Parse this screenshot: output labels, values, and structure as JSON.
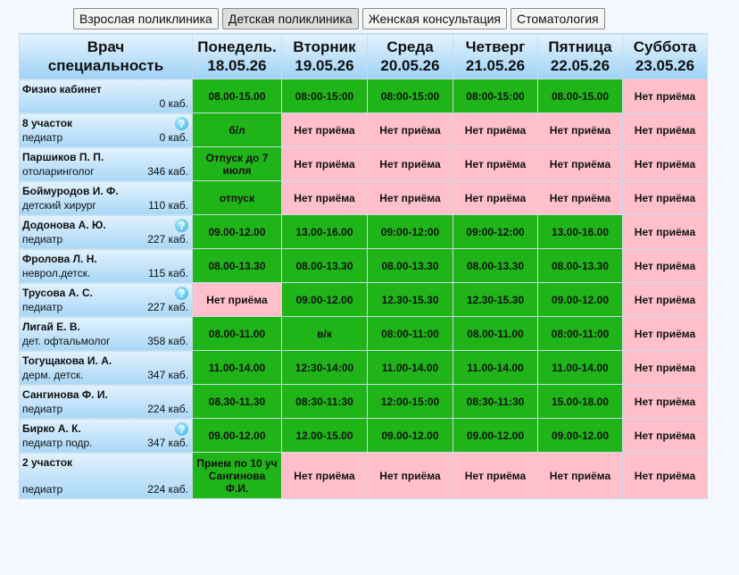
{
  "tabs": [
    {
      "label": "Взрослая поликлиника",
      "active": false
    },
    {
      "label": "Детская поликлиника",
      "active": true
    },
    {
      "label": "Женская консультация",
      "active": false
    },
    {
      "label": "Стоматология",
      "active": false
    }
  ],
  "table": {
    "doctor_header": [
      "Врач",
      "специальность"
    ],
    "days": [
      {
        "day": "Понедель.",
        "date": "18.05.26"
      },
      {
        "day": "Вторник",
        "date": "19.05.26"
      },
      {
        "day": "Среда",
        "date": "20.05.26"
      },
      {
        "day": "Четверг",
        "date": "21.05.26"
      },
      {
        "day": "Пятница",
        "date": "22.05.26"
      },
      {
        "day": "Суббота",
        "date": "23.05.26"
      }
    ],
    "rows": [
      {
        "name": "Физио кабинет",
        "room": "0 каб.",
        "help": false,
        "cells": [
          {
            "text": "08.00-15.00",
            "open": true
          },
          {
            "text": "08:00-15:00",
            "open": true
          },
          {
            "text": "08:00-15:00",
            "open": true
          },
          {
            "text": "08:00-15:00",
            "open": true
          },
          {
            "text": "08.00-15.00",
            "open": true
          },
          {
            "text": "Нет приёма",
            "open": false
          }
        ]
      },
      {
        "name": "8 участок",
        "specialty": "педиатр",
        "room": "0 каб.",
        "help": true,
        "cells": [
          {
            "text": "б/л",
            "open": true
          },
          {
            "text": "Нет приёма",
            "open": false
          },
          {
            "text": "Нет приёма",
            "open": false
          },
          {
            "text": "Нет приёма",
            "open": false
          },
          {
            "text": "Нет приёма",
            "open": false
          },
          {
            "text": "Нет приёма",
            "open": false
          }
        ]
      },
      {
        "name": "Паршиков П. П.",
        "specialty": "отоларинголог",
        "room": "346 каб.",
        "help": false,
        "cells": [
          {
            "text": "Отпуск до 7 июля",
            "open": true
          },
          {
            "text": "Нет приёма",
            "open": false
          },
          {
            "text": "Нет приёма",
            "open": false
          },
          {
            "text": "Нет приёма",
            "open": false
          },
          {
            "text": "Нет приёма",
            "open": false
          },
          {
            "text": "Нет приёма",
            "open": false
          }
        ]
      },
      {
        "name": "Боймуродов И. Ф.",
        "specialty": "детский хирург",
        "room": "110 каб.",
        "help": false,
        "cells": [
          {
            "text": "отпуск",
            "open": true
          },
          {
            "text": "Нет приёма",
            "open": false
          },
          {
            "text": "Нет приёма",
            "open": false
          },
          {
            "text": "Нет приёма",
            "open": false
          },
          {
            "text": "Нет приёма",
            "open": false
          },
          {
            "text": "Нет приёма",
            "open": false
          }
        ]
      },
      {
        "name": "Додонова А. Ю.",
        "specialty": "педиатр",
        "room": "227 каб.",
        "help": true,
        "cells": [
          {
            "text": "09.00-12.00",
            "open": true
          },
          {
            "text": "13.00-16.00",
            "open": true
          },
          {
            "text": "09:00-12:00",
            "open": true
          },
          {
            "text": "09:00-12:00",
            "open": true
          },
          {
            "text": "13.00-16.00",
            "open": true
          },
          {
            "text": "Нет приёма",
            "open": false
          }
        ]
      },
      {
        "name": "Фролова Л. Н.",
        "specialty": "неврол.детск.",
        "room": "115 каб.",
        "help": false,
        "cells": [
          {
            "text": "08.00-13.30",
            "open": true
          },
          {
            "text": "08.00-13.30",
            "open": true
          },
          {
            "text": "08.00-13.30",
            "open": true
          },
          {
            "text": "08.00-13.30",
            "open": true
          },
          {
            "text": "08.00-13.30",
            "open": true
          },
          {
            "text": "Нет приёма",
            "open": false
          }
        ]
      },
      {
        "name": "Трусова А. С.",
        "specialty": "педиатр",
        "room": "227 каб.",
        "help": true,
        "cells": [
          {
            "text": "Нет приёма",
            "open": false
          },
          {
            "text": "09.00-12.00",
            "open": true
          },
          {
            "text": "12.30-15.30",
            "open": true
          },
          {
            "text": "12.30-15.30",
            "open": true
          },
          {
            "text": "09.00-12.00",
            "open": true
          },
          {
            "text": "Нет приёма",
            "open": false
          }
        ]
      },
      {
        "name": "Лигай Е. В.",
        "specialty": "дет. офтальмолог",
        "room": "358 каб.",
        "help": false,
        "cells": [
          {
            "text": "08.00-11.00",
            "open": true
          },
          {
            "text": "в/к",
            "open": true
          },
          {
            "text": "08:00-11:00",
            "open": true
          },
          {
            "text": "08.00-11.00",
            "open": true
          },
          {
            "text": "08:00-11:00",
            "open": true
          },
          {
            "text": "Нет приёма",
            "open": false
          }
        ]
      },
      {
        "name": "Тогущакова И. А.",
        "specialty": "дерм. детск.",
        "room": "347 каб.",
        "help": false,
        "cells": [
          {
            "text": "11.00-14.00",
            "open": true
          },
          {
            "text": "12:30-14:00",
            "open": true
          },
          {
            "text": "11.00-14.00",
            "open": true
          },
          {
            "text": "11.00-14.00",
            "open": true
          },
          {
            "text": "11.00-14.00",
            "open": true
          },
          {
            "text": "Нет приёма",
            "open": false
          }
        ]
      },
      {
        "name": "Сангинова Ф. И.",
        "specialty": "педиатр",
        "room": "224 каб.",
        "help": false,
        "cells": [
          {
            "text": "08.30-11.30",
            "open": true
          },
          {
            "text": "08:30-11:30",
            "open": true
          },
          {
            "text": "12:00-15:00",
            "open": true
          },
          {
            "text": "08:30-11:30",
            "open": true
          },
          {
            "text": "15.00-18.00",
            "open": true
          },
          {
            "text": "Нет приёма",
            "open": false
          }
        ]
      },
      {
        "name": "Бирко А. К.",
        "specialty": "педиатр подр.",
        "room": "347 каб.",
        "help": true,
        "cells": [
          {
            "text": "09.00-12.00",
            "open": true
          },
          {
            "text": "12.00-15.00",
            "open": true
          },
          {
            "text": "09.00-12.00",
            "open": true
          },
          {
            "text": "09.00-12.00",
            "open": true
          },
          {
            "text": "09.00-12.00",
            "open": true
          },
          {
            "text": "Нет приёма",
            "open": false
          }
        ]
      },
      {
        "name": "2 участок",
        "specialty": "педиатр",
        "room": "224 каб.",
        "help": false,
        "cells": [
          {
            "text": "Прием по 10 уч Сангинова Ф.И.",
            "open": true
          },
          {
            "text": "Нет приёма",
            "open": false
          },
          {
            "text": "Нет приёма",
            "open": false
          },
          {
            "text": "Нет приёма",
            "open": false
          },
          {
            "text": "Нет приёма",
            "open": false
          },
          {
            "text": "Нет приёма",
            "open": false
          }
        ]
      }
    ]
  }
}
